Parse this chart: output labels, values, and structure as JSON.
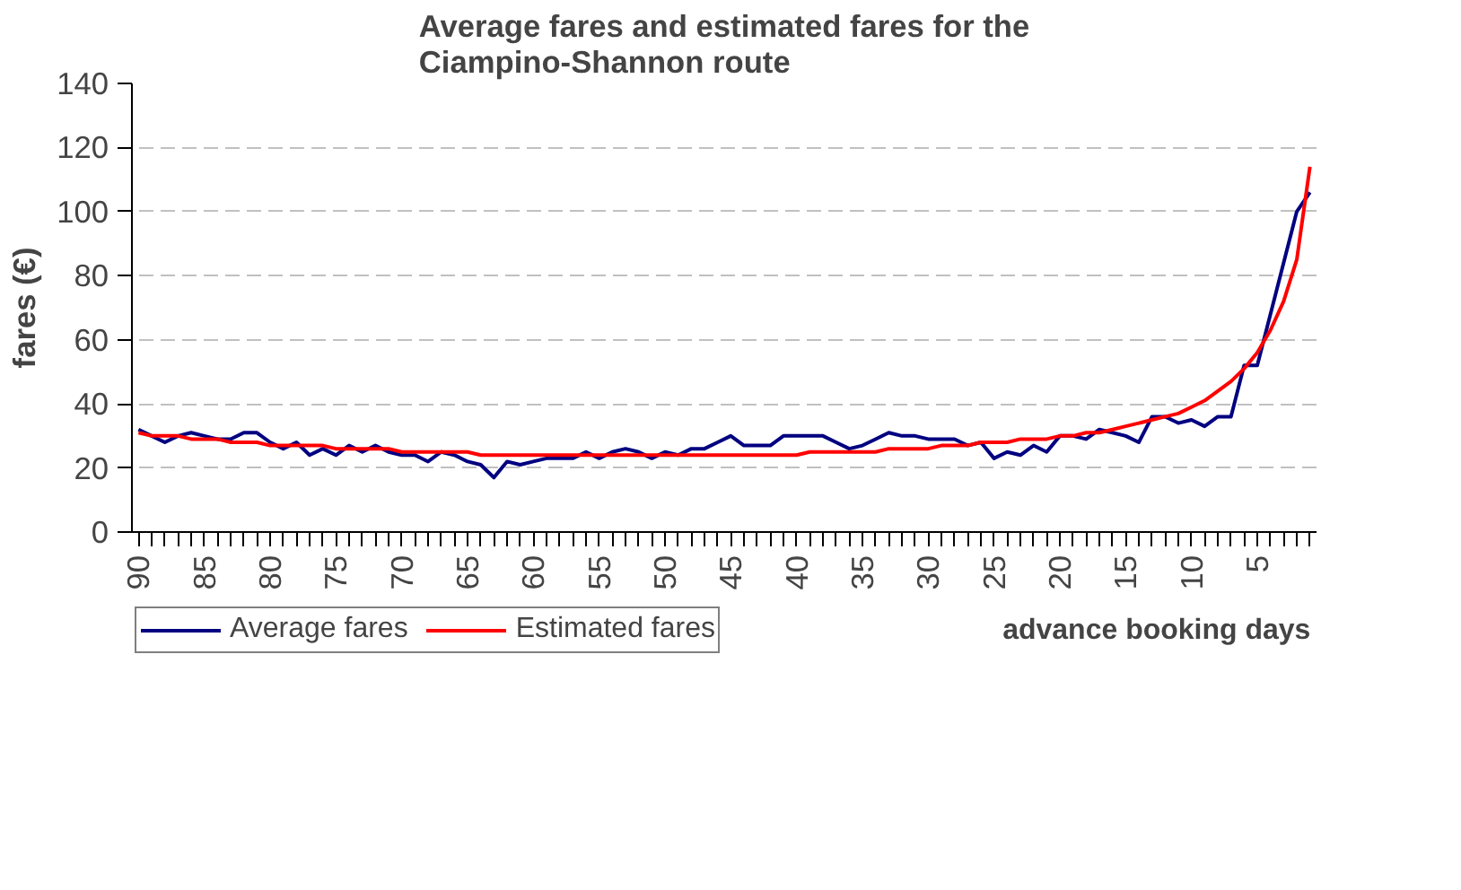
{
  "chart_data": {
    "type": "line",
    "title": "Average fares and estimated fares for the\nCiampino-Shannon route",
    "xlabel": "advance booking days",
    "ylabel": "fares (€)",
    "x": [
      90,
      89,
      88,
      87,
      86,
      85,
      84,
      83,
      82,
      81,
      80,
      79,
      78,
      77,
      76,
      75,
      74,
      73,
      72,
      71,
      70,
      69,
      68,
      67,
      66,
      65,
      64,
      63,
      62,
      61,
      60,
      59,
      58,
      57,
      56,
      55,
      54,
      53,
      52,
      51,
      50,
      49,
      48,
      47,
      46,
      45,
      44,
      43,
      42,
      41,
      40,
      39,
      38,
      37,
      36,
      35,
      34,
      33,
      32,
      31,
      30,
      29,
      28,
      27,
      26,
      25,
      24,
      23,
      22,
      21,
      20,
      19,
      18,
      17,
      16,
      15,
      14,
      13,
      12,
      11,
      10,
      9,
      8,
      7,
      6,
      5,
      4,
      3,
      2,
      1
    ],
    "xlim": [
      90.5,
      0.5
    ],
    "xticks": [
      90,
      85,
      80,
      75,
      70,
      65,
      60,
      55,
      50,
      45,
      40,
      35,
      30,
      25,
      20,
      15,
      10,
      5
    ],
    "ylim": [
      0,
      140
    ],
    "yticks": [
      0,
      20,
      40,
      60,
      80,
      100,
      120,
      140
    ],
    "series": [
      {
        "name": "Average fares",
        "color": "#000080",
        "values": [
          32,
          30,
          28,
          30,
          31,
          30,
          29,
          29,
          31,
          31,
          28,
          26,
          28,
          24,
          26,
          24,
          27,
          25,
          27,
          25,
          24,
          24,
          22,
          25,
          24,
          22,
          21,
          17,
          22,
          21,
          22,
          23,
          23,
          23,
          25,
          23,
          25,
          26,
          25,
          23,
          25,
          24,
          26,
          26,
          28,
          30,
          27,
          27,
          27,
          30,
          30,
          30,
          30,
          28,
          26,
          27,
          29,
          31,
          30,
          30,
          29,
          29,
          29,
          27,
          28,
          23,
          25,
          24,
          27,
          25,
          30,
          30,
          29,
          32,
          31,
          30,
          28,
          36,
          36,
          34,
          35,
          33,
          36,
          36,
          52,
          52,
          68,
          84,
          100,
          106
        ]
      },
      {
        "name": "Estimated fares",
        "color": "#ff0000",
        "values": [
          31,
          30,
          30,
          30,
          29,
          29,
          29,
          28,
          28,
          28,
          27,
          27,
          27,
          27,
          27,
          26,
          26,
          26,
          26,
          26,
          25,
          25,
          25,
          25,
          25,
          25,
          24,
          24,
          24,
          24,
          24,
          24,
          24,
          24,
          24,
          24,
          24,
          24,
          24,
          24,
          24,
          24,
          24,
          24,
          24,
          24,
          24,
          24,
          24,
          24,
          24,
          25,
          25,
          25,
          25,
          25,
          25,
          26,
          26,
          26,
          26,
          27,
          27,
          27,
          28,
          28,
          28,
          29,
          29,
          29,
          30,
          30,
          31,
          31,
          32,
          33,
          34,
          35,
          36,
          37,
          39,
          41,
          44,
          47,
          51,
          56,
          63,
          72,
          85,
          114
        ]
      }
    ],
    "grid": "y",
    "legend": "bottom left",
    "marker": "none",
    "line_style": "solid"
  }
}
